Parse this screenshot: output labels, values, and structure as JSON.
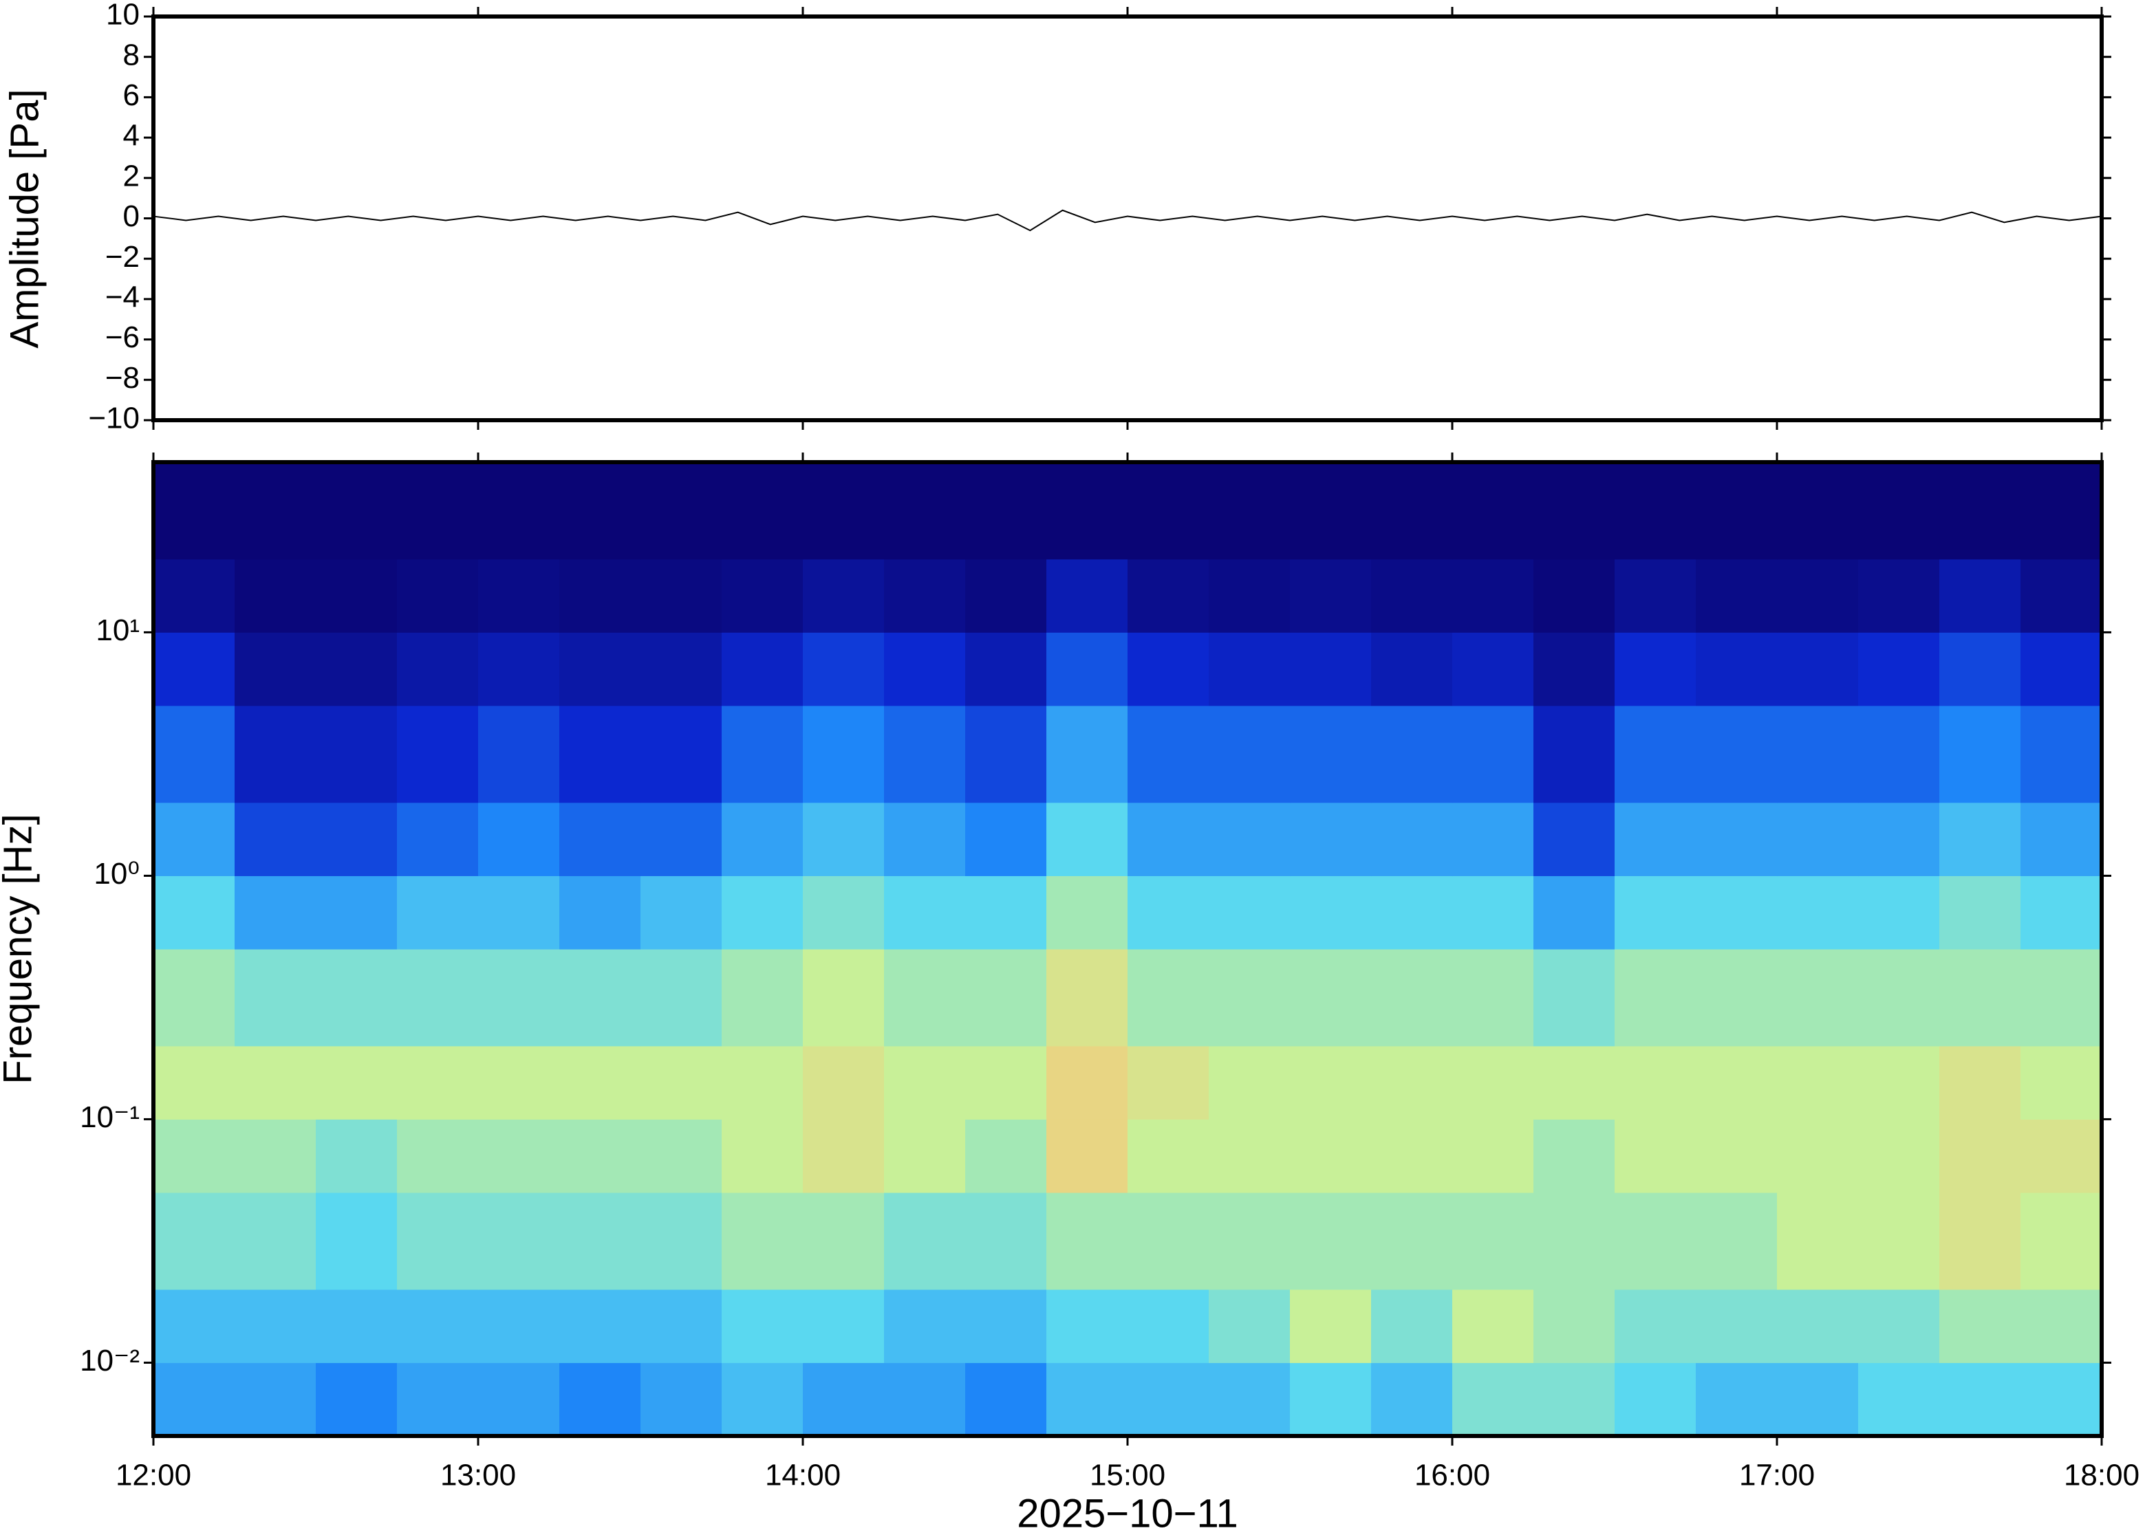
{
  "chart_data": [
    {
      "type": "line",
      "ylabel": "Amplitude [Pa]",
      "color": "#000000",
      "xlim": [
        12,
        18
      ],
      "x": [
        12,
        12.1,
        12.2,
        12.3,
        12.4,
        12.5,
        12.6,
        12.7,
        12.8,
        12.9,
        13,
        13.1,
        13.2,
        13.3,
        13.4,
        13.5,
        13.6,
        13.7,
        13.8,
        13.9,
        14,
        14.1,
        14.2,
        14.3,
        14.4,
        14.5,
        14.6,
        14.7,
        14.8,
        14.9,
        15,
        15.1,
        15.2,
        15.3,
        15.4,
        15.5,
        15.6,
        15.7,
        15.8,
        15.9,
        16,
        16.1,
        16.2,
        16.3,
        16.4,
        16.5,
        16.6,
        16.7,
        16.8,
        16.9,
        17,
        17.1,
        17.2,
        17.3,
        17.4,
        17.5,
        17.6,
        17.7,
        17.8,
        17.9,
        18
      ],
      "values": [
        0.1,
        -0.1,
        0.1,
        -0.1,
        0.1,
        -0.1,
        0.1,
        -0.1,
        0.1,
        -0.1,
        0.1,
        -0.1,
        0.1,
        -0.1,
        0.1,
        -0.1,
        0.1,
        -0.1,
        0.3,
        -0.3,
        0.1,
        -0.1,
        0.1,
        -0.1,
        0.1,
        -0.1,
        0.2,
        -0.6,
        0.4,
        -0.2,
        0.1,
        -0.1,
        0.1,
        -0.1,
        0.1,
        -0.1,
        0.1,
        -0.1,
        0.1,
        -0.1,
        0.1,
        -0.1,
        0.1,
        -0.1,
        0.1,
        -0.1,
        0.2,
        -0.1,
        0.1,
        -0.1,
        0.1,
        -0.1,
        0.1,
        -0.1,
        0.1,
        -0.1,
        0.3,
        -0.2,
        0.1,
        -0.1,
        0.1
      ],
      "ylim": [
        -10,
        10
      ],
      "yticks": [
        10,
        8,
        6,
        4,
        2,
        0,
        {
          "value": -2,
          "label": "−2"
        },
        {
          "value": -4,
          "label": "−4"
        },
        {
          "value": -6,
          "label": "−6"
        },
        {
          "value": -8,
          "label": "−8"
        },
        {
          "value": -10,
          "label": "−10"
        }
      ]
    },
    {
      "type": "heatmap",
      "ylabel": "Frequency [Hz]",
      "xlabel": "2025−10−11",
      "log_y": true,
      "xlim": [
        12,
        18
      ],
      "xticks": [
        {
          "value": 12,
          "label": "12:00"
        },
        {
          "value": 13,
          "label": "13:00"
        },
        {
          "value": 14,
          "label": "14:00"
        },
        {
          "value": 15,
          "label": "15:00"
        },
        {
          "value": 16,
          "label": "16:00"
        },
        {
          "value": 17,
          "label": "17:00"
        },
        {
          "value": 18,
          "label": "18:00"
        }
      ],
      "ylim": [
        0.005,
        50
      ],
      "yticks": [
        {
          "value": 10,
          "label": "10¹"
        },
        {
          "value": 1,
          "label": "10⁰"
        },
        {
          "value": 0.1,
          "label": "10⁻¹"
        },
        {
          "value": 0.01,
          "label": "10⁻²"
        }
      ],
      "xbins": [
        12,
        12.25,
        12.5,
        12.75,
        13,
        13.25,
        13.5,
        13.75,
        14,
        14.25,
        14.5,
        14.75,
        15,
        15.25,
        15.5,
        15.75,
        16,
        16.25,
        16.5,
        16.75,
        17,
        17.25,
        17.5,
        17.75,
        18
      ],
      "ybins": [
        0.005,
        0.01,
        0.02,
        0.05,
        0.1,
        0.2,
        0.5,
        1,
        2,
        5,
        10,
        20,
        50
      ],
      "zlim": [
        0,
        9
      ],
      "colormap": [
        "#0a0575",
        "#0c28d0",
        "#1e86f8",
        "#5ad8f0",
        "#c8f098",
        "#f8c878",
        "#e84a2a"
      ],
      "values": [
        [
          3.5,
          3.5,
          3,
          3.5,
          3.5,
          3,
          3.5,
          4,
          3.5,
          3.5,
          3,
          4,
          4,
          4,
          4.5,
          4,
          5,
          5,
          4.5,
          4,
          4,
          4.5,
          4.5,
          4.5
        ],
        [
          4,
          4,
          4,
          4,
          4,
          4,
          4,
          4.5,
          4.5,
          4,
          4,
          4.5,
          4.5,
          5,
          6,
          5,
          6,
          5.5,
          5,
          5,
          5,
          5,
          5.5,
          5.5
        ],
        [
          5,
          5,
          4.5,
          5,
          5,
          5,
          5,
          5.5,
          5.5,
          5,
          5,
          5.5,
          5.5,
          5.5,
          5.5,
          5.5,
          5.5,
          5.5,
          5.5,
          5.5,
          6,
          6,
          6.5,
          6
        ],
        [
          5.5,
          5.5,
          5,
          5.5,
          5.5,
          5.5,
          5.5,
          6,
          6.5,
          6,
          5.5,
          7,
          6,
          6,
          6,
          6,
          6,
          5.5,
          6,
          6,
          6,
          6,
          6.5,
          6.5
        ],
        [
          6,
          6,
          6,
          6,
          6,
          6,
          6,
          6,
          6.5,
          6,
          6,
          7,
          6.5,
          6,
          6,
          6,
          6,
          6,
          6,
          6,
          6,
          6,
          6.5,
          6
        ],
        [
          5.5,
          5,
          5,
          5,
          5,
          5,
          5,
          5.5,
          6,
          5.5,
          5.5,
          6.5,
          5.5,
          5.5,
          5.5,
          5.5,
          5.5,
          5,
          5.5,
          5.5,
          5.5,
          5.5,
          5.5,
          5.5
        ],
        [
          4.5,
          3.5,
          3.5,
          4,
          4,
          3.5,
          4,
          4.5,
          5,
          4.5,
          4.5,
          5.5,
          4.5,
          4.5,
          4.5,
          4.5,
          4.5,
          3.5,
          4.5,
          4.5,
          4.5,
          4.5,
          5,
          4.5
        ],
        [
          3.5,
          2,
          2,
          2.5,
          3,
          2.5,
          2.5,
          3.5,
          4,
          3.5,
          3,
          4.5,
          3.5,
          3.5,
          3.5,
          3.5,
          3.5,
          2,
          3.5,
          3.5,
          3.5,
          3.5,
          4,
          3.5
        ],
        [
          2.5,
          1.2,
          1.2,
          1.5,
          2,
          1.5,
          1.5,
          2.5,
          3,
          2.5,
          2,
          3.5,
          2.5,
          2.5,
          2.5,
          2.5,
          2.5,
          1.2,
          2.5,
          2.5,
          2.5,
          2.5,
          3,
          2.5
        ],
        [
          1.5,
          0.5,
          0.5,
          0.8,
          1,
          0.8,
          0.8,
          1.3,
          1.8,
          1.5,
          1,
          2.2,
          1.5,
          1.3,
          1.3,
          1,
          1.2,
          0.5,
          1.5,
          1.3,
          1.3,
          1.5,
          2,
          1.5
        ],
        [
          0.4,
          0.1,
          0.1,
          0.2,
          0.3,
          0.2,
          0.2,
          0.3,
          0.6,
          0.4,
          0.2,
          1,
          0.4,
          0.3,
          0.4,
          0.3,
          0.3,
          0.1,
          0.5,
          0.3,
          0.3,
          0.4,
          0.9,
          0.4
        ],
        [
          0,
          0,
          0,
          0,
          0,
          0,
          0,
          0,
          0,
          0,
          0,
          0,
          0,
          0,
          0,
          0,
          0,
          0,
          0,
          0,
          0,
          0,
          0,
          0
        ]
      ]
    }
  ]
}
